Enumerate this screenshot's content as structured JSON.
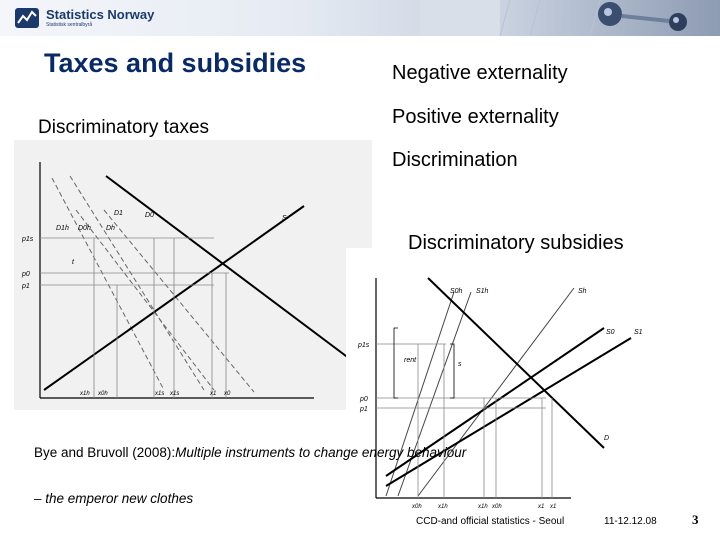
{
  "header": {
    "logo_name": "Statistics Norway",
    "logo_sub": "Statistisk sentralbyrå"
  },
  "slide": {
    "title": "Taxes and subsidies",
    "left_heading": "Discriminatory taxes",
    "right_items": [
      "Negative externality",
      "Positive externality",
      "Discrimination"
    ],
    "right_heading": "Discriminatory subsidies",
    "citation_plain": "Bye and Bruvoll (2008):",
    "citation_italic": "Multiple instruments to change energy behaviour",
    "subtitle": "– the emperor new clothes"
  },
  "diagram_left": {
    "curve_labels": [
      "D1",
      "D0",
      "S",
      "D1h",
      "D0h",
      "Dh"
    ],
    "axis_labels": [
      "p1s",
      "p0",
      "p1",
      "t"
    ],
    "x_labels": [
      "x1h",
      "x0h",
      "x1s",
      "x1s",
      "x1",
      "x0"
    ]
  },
  "diagram_right": {
    "curve_labels": [
      "S0h",
      "S1h",
      "Sh",
      "S0",
      "S1",
      "D"
    ],
    "axis_labels": [
      "p1s",
      "p0",
      "p1",
      "rent",
      "s"
    ],
    "x_labels": [
      "x0h",
      "x1h",
      "x1h",
      "x0h",
      "x1",
      "x1"
    ]
  },
  "footer": {
    "event": "CCD-and official statistics - Seoul",
    "dates": "11-12.12.08",
    "page": "3"
  }
}
